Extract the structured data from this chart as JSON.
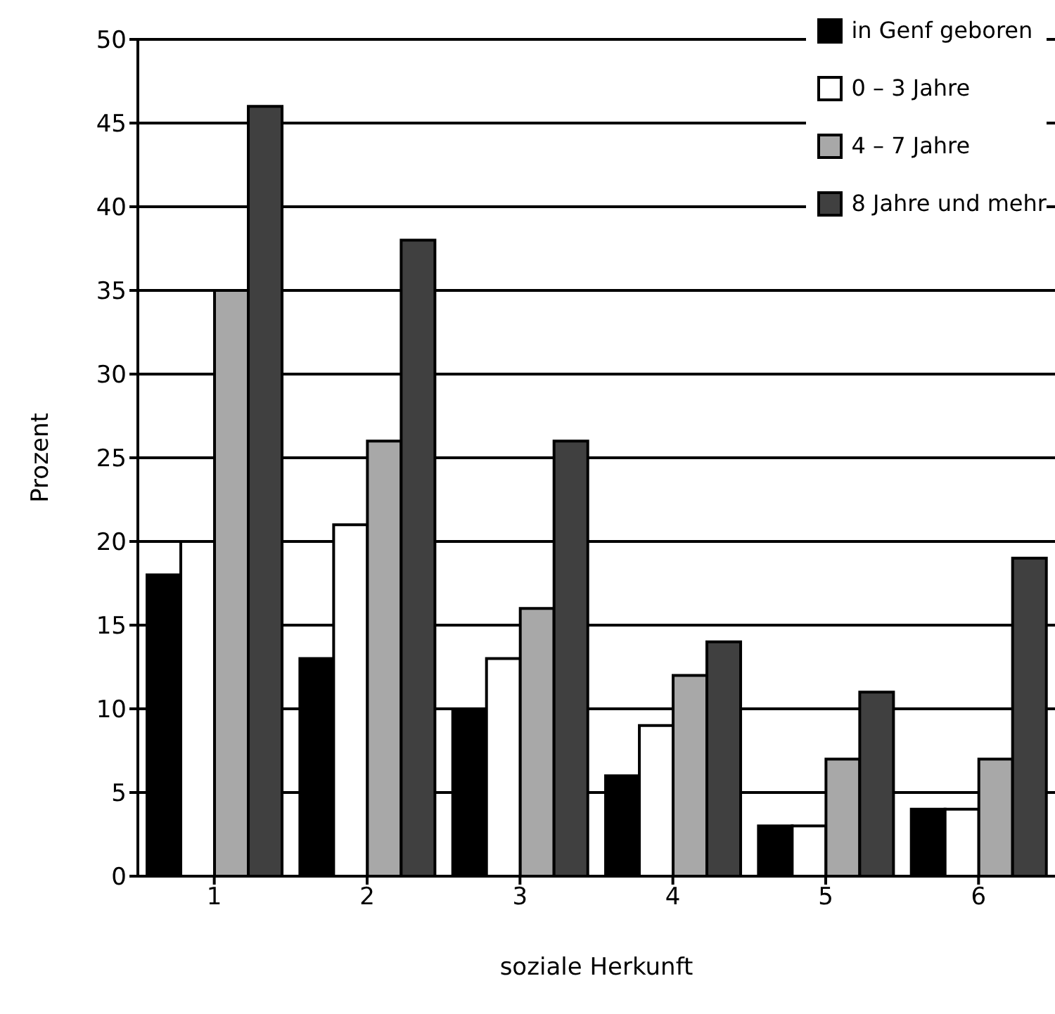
{
  "chart_data": {
    "type": "bar",
    "xlabel": "soziale Herkunft",
    "ylabel": "Prozent",
    "categories": [
      "1",
      "2",
      "3",
      "4",
      "5",
      "6"
    ],
    "series": [
      {
        "name": "in Genf geboren",
        "color": "#000000",
        "values": [
          18,
          13,
          10,
          6,
          3,
          4
        ]
      },
      {
        "name": "0 – 3 Jahre",
        "color": "#ffffff",
        "values": [
          20,
          21,
          13,
          9,
          3,
          4
        ]
      },
      {
        "name": "4 – 7 Jahre",
        "color": "#a8a8a8",
        "values": [
          35,
          26,
          16,
          12,
          7,
          7
        ]
      },
      {
        "name": "8 Jahre und mehr",
        "color": "#404040",
        "values": [
          46,
          38,
          26,
          14,
          11,
          19
        ]
      }
    ],
    "ylim": [
      0,
      50
    ],
    "yticks": [
      0,
      5,
      10,
      15,
      20,
      25,
      30,
      35,
      40,
      45,
      50
    ],
    "grid": "y",
    "legend": "top right"
  }
}
